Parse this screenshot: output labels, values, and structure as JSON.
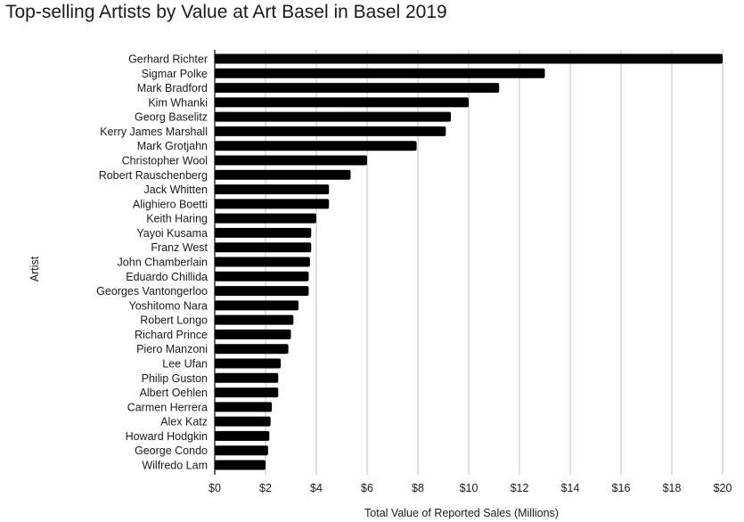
{
  "chart_data": {
    "type": "bar",
    "orientation": "horizontal",
    "title": "Top-selling Artists by Value at Art Basel in Basel 2019",
    "xlabel": "Total Value of Reported Sales (Millions)",
    "ylabel": "Artist",
    "xlim": [
      0,
      20
    ],
    "x_ticks": [
      0,
      2,
      4,
      6,
      8,
      10,
      12,
      14,
      16,
      18,
      20
    ],
    "x_tick_labels": [
      "$0",
      "$2",
      "$4",
      "$6",
      "$8",
      "$10",
      "$12",
      "$14",
      "$16",
      "$18",
      "$20"
    ],
    "grid": true,
    "bar_color": "#000000",
    "grid_color": "#cccccc",
    "categories": [
      "Gerhard Richter",
      "Sigmar Polke",
      "Mark Bradford",
      "Kim Whanki",
      "Georg Baselitz",
      "Kerry James Marshall",
      "Mark Grotjahn",
      "Christopher Wool",
      "Robert Rauschenberg",
      "Jack Whitten",
      "Alighiero Boetti",
      "Keith Haring",
      "Yayoi Kusama",
      "Franz West",
      "John Chamberlain",
      "Eduardo Chillida",
      "Georges Vantongerloo",
      "Yoshitomo Nara",
      "Robert Longo",
      "Richard Prince",
      "Piero Manzoni",
      "Lee Ufan",
      "Philip Guston",
      "Albert Oehlen",
      "Carmen Herrera",
      "Alex Katz",
      "Howard Hodgkin",
      "George Condo",
      "Wilfredo Lam"
    ],
    "values": [
      20.0,
      13.0,
      11.2,
      10.0,
      9.3,
      9.1,
      7.95,
      6.0,
      5.35,
      4.5,
      4.5,
      4.0,
      3.8,
      3.8,
      3.75,
      3.7,
      3.7,
      3.3,
      3.1,
      3.0,
      2.9,
      2.6,
      2.5,
      2.5,
      2.25,
      2.2,
      2.15,
      2.1,
      2.0
    ]
  }
}
